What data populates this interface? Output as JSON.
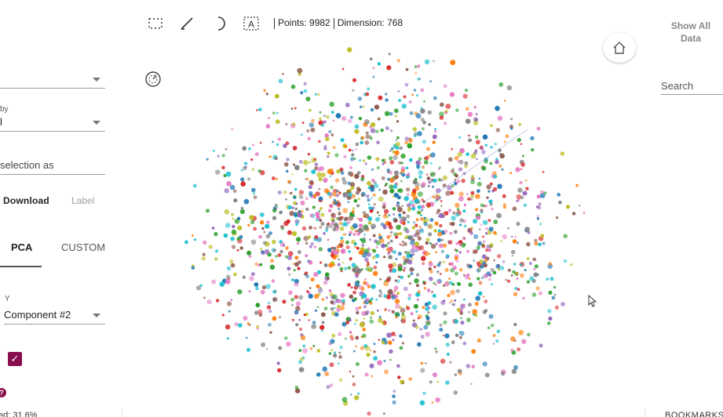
{
  "toolbar": {
    "icons": [
      "select-icon",
      "edit-icon",
      "night-mode-icon",
      "label-icon"
    ],
    "points_label": "Points: 9982",
    "dimension_label": "Dimension: 768"
  },
  "left_panel": {
    "label_by_dropdown": "",
    "color_by_label": "by",
    "color_by_value": "l",
    "selection_field": "selection as",
    "download_label": "Download",
    "label_button": "Label",
    "tabs": [
      "PCA",
      "CUSTOM"
    ],
    "y_axis_label": "Y",
    "y_axis_value": "Component #2",
    "help_glyph": "?",
    "variance_text": "ed: 31.6%"
  },
  "right_panel": {
    "show_all_line1": "Show All",
    "show_all_line2": "Data",
    "search_placeholder": "Search"
  },
  "footer": {
    "right_text": "BOOKMARKS"
  },
  "scatter": {
    "point_colors": [
      "#1f77b4",
      "#ff7f0e",
      "#2ca02c",
      "#d62728",
      "#9467bd",
      "#8c564b",
      "#e377c2",
      "#7f7f7f",
      "#bcbd22",
      "#17becf"
    ],
    "num_points_drawn": 1800
  }
}
